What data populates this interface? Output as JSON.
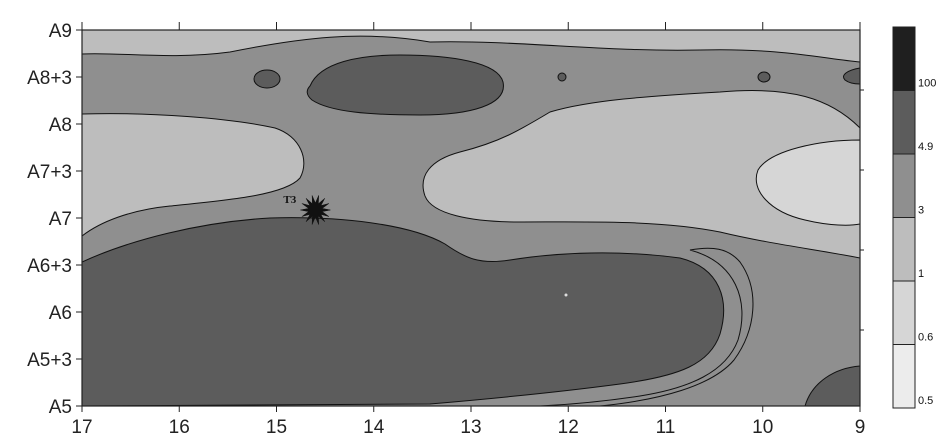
{
  "chart_data": {
    "type": "heatmap",
    "subtype": "filled-contour",
    "title": "",
    "xlabel": "",
    "ylabel": "",
    "x_ticks": [
      "17",
      "16",
      "15",
      "14",
      "13",
      "12",
      "11",
      "10",
      "9"
    ],
    "x_range": [
      17,
      9
    ],
    "y_ticks": [
      "A5",
      "A5+3",
      "A6",
      "A6+3",
      "A7",
      "A7+3",
      "A8",
      "A8+3",
      "A9"
    ],
    "grid": false,
    "colorbar": {
      "placement": "right",
      "levels": [
        "0.5",
        "0.6",
        "1",
        "3",
        "4.9",
        "100"
      ],
      "colors": [
        "#ececec",
        "#d6d6d6",
        "#bdbdbd",
        "#8f8f8f",
        "#5c5c5c",
        "#1f1f1f"
      ]
    },
    "annotations": [
      {
        "label": "T3",
        "x": 14.6,
        "y": "A7"
      }
    ]
  }
}
